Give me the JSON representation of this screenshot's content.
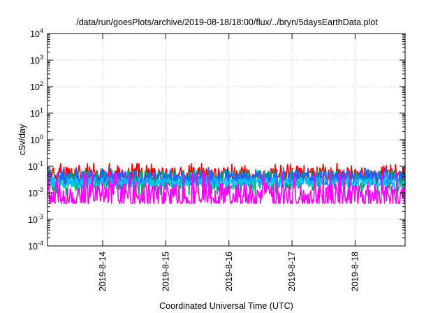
{
  "chart_data": {
    "type": "area",
    "title": "/data/run/goesPlots/archive/2019-08-18/18:00/flux/../bryn/5daysEarthData.plot",
    "xlabel": "Coordinated Universal Time (UTC)",
    "ylabel": "cSv/day",
    "yscale": "log",
    "ylim": [
      0.0001,
      10000
    ],
    "xlim": [
      "2019-08-13T03:00",
      "2019-08-18T19:00"
    ],
    "grid": true,
    "y_ticks": [
      {
        "base": "10",
        "exp": "-4",
        "value": 0.0001
      },
      {
        "base": "10",
        "exp": "-3",
        "value": 0.001
      },
      {
        "base": "10",
        "exp": "-2",
        "value": 0.01
      },
      {
        "base": "10",
        "exp": "-1",
        "value": 0.1
      },
      {
        "base": "10",
        "exp": "0",
        "value": 1
      },
      {
        "base": "10",
        "exp": "1",
        "value": 10
      },
      {
        "base": "10",
        "exp": "2",
        "value": 100
      },
      {
        "base": "10",
        "exp": "3",
        "value": 1000
      },
      {
        "base": "10",
        "exp": "4",
        "value": 10000
      }
    ],
    "x_ticks": [
      {
        "label": "2019-8-14",
        "date": "2019-08-14T00:00"
      },
      {
        "label": "2019-8-15",
        "date": "2019-08-15T00:00"
      },
      {
        "label": "2019-8-16",
        "date": "2019-08-16T00:00"
      },
      {
        "label": "2019-8-17",
        "date": "2019-08-17T00:00"
      },
      {
        "label": "2019-8-18",
        "date": "2019-08-18T00:00"
      }
    ],
    "series": [
      {
        "color": "#ff0000",
        "typical": 0.05,
        "min": 0.03,
        "max": 0.13
      },
      {
        "color": "#00aa66",
        "typical": 0.03,
        "min": 0.008,
        "max": 0.07
      },
      {
        "color": "#1e64ff",
        "typical": 0.035,
        "min": 0.02,
        "max": 0.09
      },
      {
        "color": "#00c8ff",
        "typical": 0.025,
        "min": 0.015,
        "max": 0.04
      },
      {
        "color": "#ff00ff",
        "typical": 0.008,
        "min": 0.004,
        "max": 0.06
      }
    ]
  }
}
